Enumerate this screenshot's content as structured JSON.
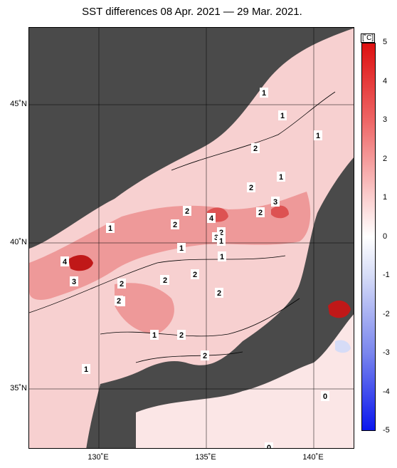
{
  "title": "SST differences 08 Apr. 2021 — 29 Mar. 2021.",
  "y_axis_labels": [
    "45˚N",
    "40˚N",
    "35˚N"
  ],
  "x_axis_labels": [
    "130˚E",
    "135˚E",
    "140˚E"
  ],
  "colorbar": {
    "unit": "[˚C]",
    "ticks": [
      "5",
      "4",
      "3",
      "2",
      "1",
      "0",
      "-1",
      "-2",
      "-3",
      "-4",
      "-5"
    ],
    "colors": {
      "pos5": "#dd1111",
      "pos3": "#ee6666",
      "pos1": "#fbcfcf",
      "zero": "#ffffff",
      "neg1": "#d6dcf7",
      "neg3": "#7a86ee",
      "neg5": "#0a16ee"
    }
  },
  "map_colors": {
    "land": "#4a4a4a",
    "sea_light": "#f7d0d0",
    "sea_mid": "#ee9999",
    "sea_strong": "#dd5252",
    "sea_hot": "#c01818",
    "near_zero": "#ffffff"
  },
  "contour_labels": [
    "1",
    "1",
    "1",
    "1",
    "2",
    "2",
    "3",
    "2",
    "1",
    "2",
    "4",
    "2",
    "3",
    "2",
    "1",
    "1",
    "4",
    "3",
    "1",
    "2",
    "2",
    "1",
    "2",
    "2",
    "2",
    "2",
    "1",
    "2",
    "2",
    "1",
    "0",
    "0"
  ]
}
